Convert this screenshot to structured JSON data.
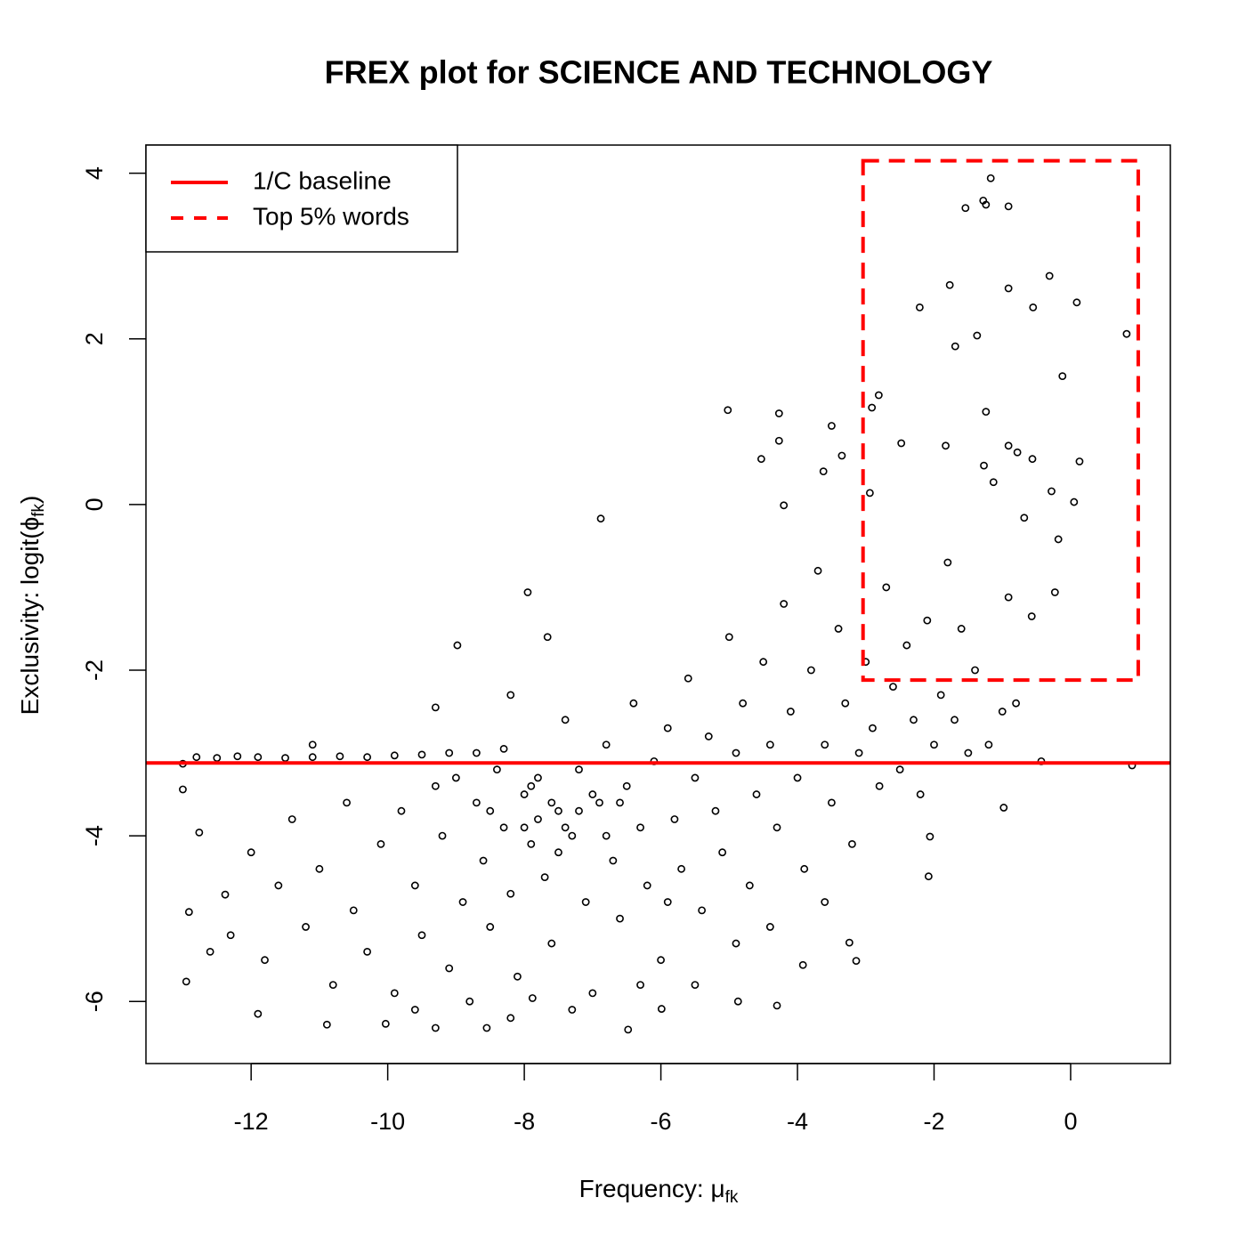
{
  "chart_data": {
    "type": "scatter",
    "title": "FREX plot for SCIENCE AND TECHNOLOGY",
    "xlabel": {
      "text": "Frequency: μ",
      "subscript": "fk"
    },
    "ylabel": {
      "text": "Exclusivity: logit(ϕ",
      "subscript": "fk",
      "suffix": ")"
    },
    "xlim": [
      -13.54,
      1.46
    ],
    "ylim": [
      -6.75,
      4.34
    ],
    "xticks": [
      -12,
      -10,
      -8,
      -6,
      -4,
      -2,
      0
    ],
    "yticks": [
      -6,
      -4,
      -2,
      0,
      2,
      4
    ],
    "legend": "topleft",
    "series": [
      {
        "color": "#000000",
        "marker": "open-circle",
        "x": [
          -1.17,
          -1.28,
          -1.54,
          -0.91,
          -1.24,
          -1.77,
          -0.31,
          -0.91,
          -0.55,
          0.09,
          -2.21,
          -1.37,
          0.82,
          -1.69,
          -0.12,
          -5.02,
          -4.27,
          -2.81,
          -2.91,
          -1.24,
          -4.27,
          -3.5,
          -4.53,
          -3.35,
          -2.48,
          -1.83,
          -0.91,
          -0.78,
          0.13,
          -0.56,
          -1.27,
          -3.62,
          -2.94,
          -0.28,
          0.05,
          -1.13,
          -6.88,
          -4.2,
          -0.18,
          -0.68,
          -0.23,
          -0.57,
          -0.91,
          -0.43,
          0.9,
          -0.98,
          -7.95,
          -8.98,
          -7.66,
          -2.08,
          -2.06,
          -4.3,
          -3.24,
          -3.14,
          -3.92,
          -9.3,
          -6.48,
          -8.55,
          -11.9,
          -12.91,
          -12.95,
          -13.0,
          -13.0,
          -12.76,
          -12.38,
          -10.89,
          -10.03,
          -7.88,
          -5.99,
          -4.87,
          -12.8,
          -12.5,
          -12.2,
          -11.9,
          -11.5,
          -11.1,
          -11.1,
          -10.7,
          -10.3,
          -9.9,
          -9.5,
          -9.1,
          -8.7,
          -8.3,
          -9.3,
          -8.2,
          -12.6,
          -12.3,
          -12.0,
          -11.8,
          -11.6,
          -11.4,
          -11.2,
          -11.0,
          -10.8,
          -10.6,
          -10.5,
          -10.3,
          -10.1,
          -9.9,
          -9.8,
          -9.6,
          -9.5,
          -9.3,
          -9.2,
          -9.1,
          -9.0,
          -8.9,
          -8.8,
          -8.7,
          -8.6,
          -8.5,
          -8.4,
          -8.3,
          -8.2,
          -8.1,
          -8.0,
          -7.9,
          -7.8,
          -7.7,
          -7.6,
          -7.5,
          -7.4,
          -7.3,
          -7.2,
          -7.1,
          -7.0,
          -6.9,
          -6.8,
          -6.7,
          -6.6,
          -6.5,
          -6.4,
          -6.3,
          -6.2,
          -6.1,
          -6.0,
          -5.9,
          -5.8,
          -5.7,
          -5.6,
          -5.5,
          -5.4,
          -5.3,
          -5.2,
          -5.1,
          -5.0,
          -4.9,
          -4.8,
          -4.7,
          -4.6,
          -4.5,
          -4.4,
          -4.3,
          -4.2,
          -4.1,
          -4.0,
          -3.9,
          -3.8,
          -3.7,
          -3.6,
          -3.5,
          -3.4,
          -3.3,
          -3.2,
          -3.1,
          -3.0,
          -2.9,
          -2.8,
          -2.7,
          -2.6,
          -2.5,
          -2.4,
          -2.3,
          -2.2,
          -2.1,
          -2.0,
          -1.9,
          -1.8,
          -1.7,
          -1.6,
          -1.5,
          -1.4,
          -1.2,
          -1.0,
          -0.8,
          -7.8,
          -7.6,
          -7.4,
          -7.2,
          -7.0,
          -8.0,
          -7.5,
          -6.8,
          -8.5,
          -7.9,
          -6.6,
          -5.9,
          -5.5,
          -4.9,
          -4.4,
          -3.6,
          -6.3,
          -7.3,
          -8.2,
          -9.6
        ],
        "y": [
          3.94,
          3.67,
          3.58,
          3.6,
          3.62,
          2.65,
          2.76,
          2.61,
          2.38,
          2.44,
          2.38,
          2.04,
          2.06,
          1.91,
          1.55,
          1.14,
          1.1,
          1.32,
          1.17,
          1.12,
          0.77,
          0.95,
          0.55,
          0.59,
          0.74,
          0.71,
          0.71,
          0.63,
          0.52,
          0.55,
          0.47,
          0.4,
          0.14,
          0.16,
          0.03,
          0.27,
          -0.17,
          -0.01,
          -0.42,
          -0.16,
          -1.06,
          -1.35,
          -1.12,
          -3.1,
          -3.15,
          -3.66,
          -1.06,
          -1.7,
          -1.6,
          -4.49,
          -4.01,
          -6.05,
          -5.29,
          -5.51,
          -5.56,
          -6.32,
          -6.34,
          -6.32,
          -6.15,
          -4.92,
          -5.76,
          -3.13,
          -3.44,
          -3.96,
          -4.71,
          -6.28,
          -6.27,
          -5.96,
          -6.09,
          -6.0,
          -3.05,
          -3.06,
          -3.04,
          -3.05,
          -3.06,
          -2.9,
          -3.05,
          -3.04,
          -3.05,
          -3.03,
          -3.02,
          -3.0,
          -3.0,
          -2.95,
          -2.45,
          -2.3,
          -5.4,
          -5.2,
          -4.2,
          -5.5,
          -4.6,
          -3.8,
          -5.1,
          -4.4,
          -5.8,
          -3.6,
          -4.9,
          -5.4,
          -4.1,
          -5.9,
          -3.7,
          -4.6,
          -5.2,
          -3.4,
          -4.0,
          -5.6,
          -3.3,
          -4.8,
          -6.0,
          -3.6,
          -4.3,
          -5.1,
          -3.2,
          -3.9,
          -4.7,
          -5.7,
          -3.5,
          -4.1,
          -3.3,
          -4.5,
          -5.3,
          -3.7,
          -2.6,
          -4.0,
          -3.2,
          -4.8,
          -5.9,
          -3.6,
          -2.9,
          -4.3,
          -5.0,
          -3.4,
          -2.4,
          -3.9,
          -4.6,
          -3.1,
          -5.5,
          -2.7,
          -3.8,
          -4.4,
          -2.1,
          -3.3,
          -4.9,
          -2.8,
          -3.7,
          -4.2,
          -1.6,
          -3.0,
          -2.4,
          -4.6,
          -3.5,
          -1.9,
          -2.9,
          -3.9,
          -1.2,
          -2.5,
          -3.3,
          -4.4,
          -2.0,
          -0.8,
          -2.9,
          -3.6,
          -1.5,
          -2.4,
          -4.1,
          -3.0,
          -1.9,
          -2.7,
          -3.4,
          -1.0,
          -2.2,
          -3.2,
          -1.7,
          -2.6,
          -3.5,
          -1.4,
          -2.9,
          -2.3,
          -0.7,
          -2.6,
          -1.5,
          -3.0,
          -2.0,
          -2.9,
          -2.5,
          -2.4,
          -3.8,
          -3.6,
          -3.9,
          -3.7,
          -3.5,
          -3.9,
          -4.2,
          -4.0,
          -3.7,
          -3.4,
          -3.6,
          -4.8,
          -5.8,
          -5.3,
          -5.1,
          -4.8,
          -5.8,
          -6.1,
          -6.2,
          -6.1
        ]
      }
    ],
    "reference_lines": [
      {
        "name": "1/C baseline",
        "y": -3.12,
        "color": "#ff0000",
        "style": "solid"
      }
    ],
    "regions": [
      {
        "name": "Top 5% words",
        "xlim": [
          -3.04,
          0.99
        ],
        "ylim": [
          -2.12,
          4.15
        ],
        "color": "#ff0000",
        "style": "dashed"
      }
    ]
  }
}
